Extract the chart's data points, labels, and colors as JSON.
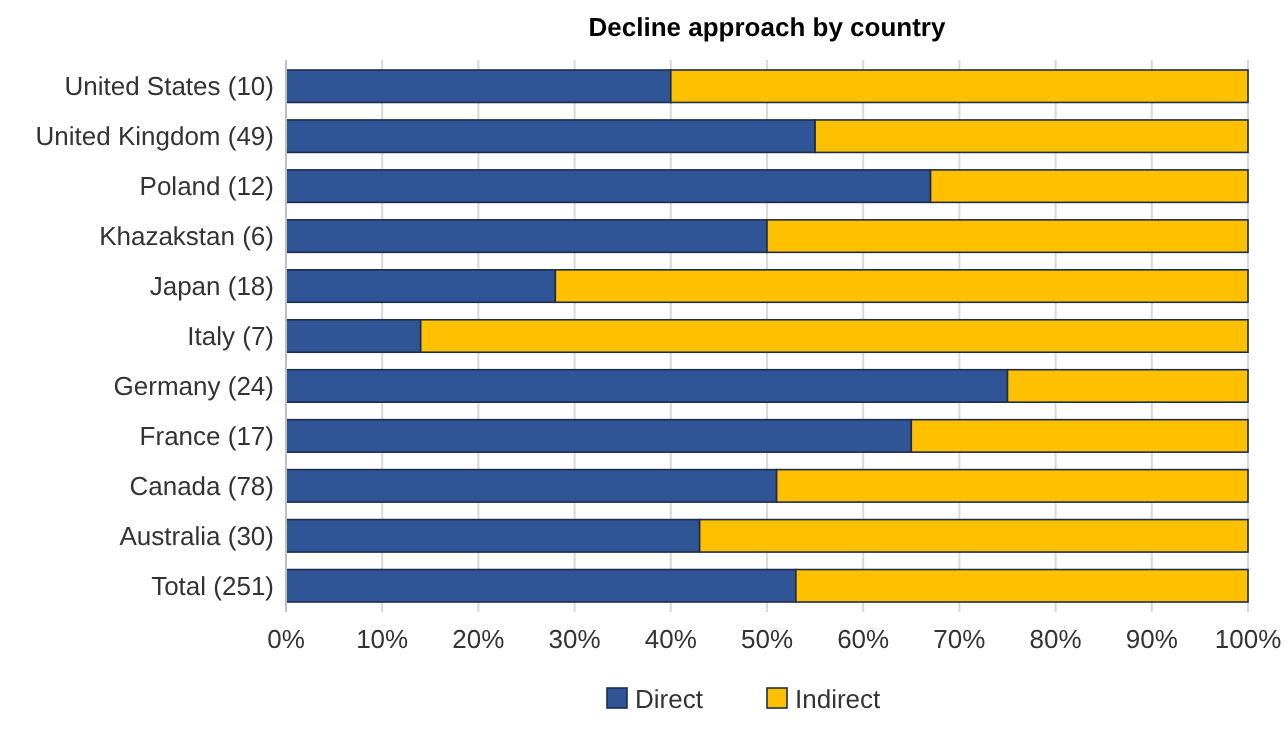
{
  "chart_data": {
    "type": "bar",
    "orientation": "horizontal",
    "stacked": true,
    "title": "Decline approach by country",
    "categories": [
      "United States (10)",
      "United Kingdom (49)",
      "Poland (12)",
      "Khazakstan (6)",
      "Japan (18)",
      "Italy (7)",
      "Germany (24)",
      "France (17)",
      "Canada (78)",
      "Australia (30)",
      "Total (251)"
    ],
    "series": [
      {
        "name": "Direct",
        "color": "#2f5597",
        "values": [
          40,
          55,
          67,
          50,
          28,
          14,
          75,
          65,
          51,
          43,
          53
        ]
      },
      {
        "name": "Indirect",
        "color": "#ffc000",
        "values": [
          60,
          45,
          33,
          50,
          72,
          86,
          25,
          35,
          49,
          57,
          47
        ]
      }
    ],
    "xlim": [
      0,
      100
    ],
    "xticks": [
      {
        "value": 0,
        "label": "0%"
      },
      {
        "value": 10,
        "label": "10%"
      },
      {
        "value": 20,
        "label": "20%"
      },
      {
        "value": 30,
        "label": "30%"
      },
      {
        "value": 40,
        "label": "40%"
      },
      {
        "value": 50,
        "label": "50%"
      },
      {
        "value": 60,
        "label": "60%"
      },
      {
        "value": 70,
        "label": "70%"
      },
      {
        "value": 80,
        "label": "80%"
      },
      {
        "value": 90,
        "label": "90%"
      },
      {
        "value": 100,
        "label": "100%"
      }
    ],
    "grid": "x",
    "legend": "bottom"
  }
}
